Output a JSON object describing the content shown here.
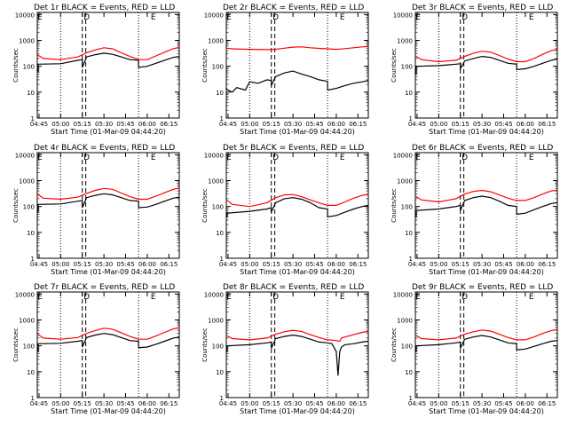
{
  "figure": {
    "xlabel": "Start Time (01-Mar-09 04:44:20)",
    "ylabel": "Counts/sec",
    "x_ticks": [
      "04:45",
      "05:00",
      "05:15",
      "05:30",
      "05:45",
      "06:00",
      "06:15"
    ],
    "y_ticks": [
      "1",
      "10",
      "100",
      "1000",
      "10000"
    ],
    "flag_labels": [
      "E",
      "D",
      "E"
    ],
    "colors": {
      "events": "#000000",
      "lld": "#ff0000",
      "axes": "#000000"
    }
  },
  "chart_data": [
    {
      "type": "line",
      "title": "Det 1r BLACK = Events, RED = LLD",
      "xlim": [
        4.73,
        6.37
      ],
      "ylim": [
        1,
        12000
      ],
      "ylog": true,
      "vlines_dotted": [
        5.0,
        5.9
      ],
      "vlines_dashed": [
        5.25,
        5.29
      ],
      "series": [
        {
          "name": "Events",
          "x": [
            4.73,
            4.74,
            4.74,
            5.0,
            5.2,
            5.25,
            5.25,
            5.3,
            5.4,
            5.5,
            5.6,
            5.7,
            5.8,
            5.9,
            5.9,
            6.0,
            6.1,
            6.2,
            6.3,
            6.37
          ],
          "y": [
            60,
            60,
            120,
            125,
            170,
            180,
            90,
            230,
            280,
            320,
            290,
            230,
            180,
            170,
            90,
            100,
            130,
            170,
            220,
            240
          ]
        },
        {
          "name": "LLD",
          "x": [
            4.73,
            4.8,
            5.0,
            5.2,
            5.3,
            5.4,
            5.5,
            5.6,
            5.7,
            5.8,
            5.9,
            6.0,
            6.1,
            6.2,
            6.3,
            6.37
          ],
          "y": [
            280,
            200,
            180,
            230,
            330,
            430,
            520,
            470,
            330,
            240,
            180,
            180,
            250,
            350,
            480,
            530
          ]
        }
      ]
    },
    {
      "type": "line",
      "title": "Det 2r BLACK = Events, RED = LLD",
      "xlim": [
        4.73,
        6.37
      ],
      "ylim": [
        1,
        12000
      ],
      "ylog": true,
      "vlines_dotted": [
        5.0,
        5.9
      ],
      "vlines_dashed": [
        5.25,
        5.29
      ],
      "series": [
        {
          "name": "Events",
          "x": [
            4.73,
            4.75,
            4.8,
            4.85,
            4.95,
            5.0,
            5.1,
            5.2,
            5.25,
            5.25,
            5.3,
            5.4,
            5.5,
            5.6,
            5.7,
            5.8,
            5.9,
            5.9,
            6.0,
            6.1,
            6.2,
            6.3,
            6.37
          ],
          "y": [
            14,
            12,
            10,
            15,
            12,
            25,
            22,
            30,
            28,
            18,
            40,
            55,
            65,
            50,
            40,
            30,
            26,
            12,
            14,
            18,
            22,
            25,
            28
          ]
        },
        {
          "name": "LLD",
          "x": [
            4.73,
            4.8,
            5.0,
            5.2,
            5.3,
            5.4,
            5.5,
            5.6,
            5.7,
            5.8,
            5.9,
            6.0,
            6.1,
            6.2,
            6.3,
            6.37
          ],
          "y": [
            500,
            470,
            450,
            440,
            450,
            500,
            550,
            560,
            520,
            490,
            470,
            450,
            480,
            520,
            560,
            580
          ]
        }
      ]
    },
    {
      "type": "line",
      "title": "Det 3r BLACK = Events, RED = LLD",
      "xlim": [
        4.73,
        6.37
      ],
      "ylim": [
        1,
        12000
      ],
      "ylog": true,
      "vlines_dotted": [
        5.0,
        5.9
      ],
      "vlines_dashed": [
        5.25,
        5.29
      ],
      "series": [
        {
          "name": "Events",
          "x": [
            4.73,
            4.74,
            4.74,
            5.0,
            5.2,
            5.25,
            5.25,
            5.3,
            5.4,
            5.5,
            5.6,
            5.7,
            5.8,
            5.9,
            5.9,
            6.0,
            6.1,
            6.2,
            6.3,
            6.37
          ],
          "y": [
            50,
            50,
            100,
            105,
            120,
            125,
            80,
            160,
            200,
            240,
            220,
            170,
            130,
            120,
            75,
            80,
            100,
            130,
            170,
            190
          ]
        },
        {
          "name": "LLD",
          "x": [
            4.73,
            4.8,
            5.0,
            5.2,
            5.3,
            5.4,
            5.5,
            5.6,
            5.7,
            5.8,
            5.9,
            6.0,
            6.1,
            6.2,
            6.3,
            6.37
          ],
          "y": [
            250,
            180,
            150,
            170,
            240,
            320,
            380,
            350,
            260,
            190,
            150,
            150,
            200,
            290,
            400,
            450
          ]
        }
      ]
    },
    {
      "type": "line",
      "title": "Det 4r BLACK = Events, RED = LLD",
      "xlim": [
        4.73,
        6.37
      ],
      "ylim": [
        1,
        12000
      ],
      "ylog": true,
      "vlines_dotted": [
        5.0,
        5.9
      ],
      "vlines_dashed": [
        5.25,
        5.29
      ],
      "series": [
        {
          "name": "Events",
          "x": [
            4.73,
            4.74,
            4.74,
            5.0,
            5.2,
            5.25,
            5.25,
            5.3,
            5.4,
            5.5,
            5.6,
            5.7,
            5.8,
            5.9,
            5.9,
            6.0,
            6.1,
            6.2,
            6.3,
            6.37
          ],
          "y": [
            60,
            60,
            120,
            125,
            160,
            170,
            90,
            220,
            270,
            310,
            280,
            220,
            170,
            160,
            90,
            95,
            120,
            160,
            210,
            230
          ]
        },
        {
          "name": "LLD",
          "x": [
            4.73,
            4.8,
            5.0,
            5.2,
            5.3,
            5.4,
            5.5,
            5.6,
            5.7,
            5.8,
            5.9,
            6.0,
            6.1,
            6.2,
            6.3,
            6.37
          ],
          "y": [
            300,
            210,
            190,
            230,
            320,
            420,
            500,
            460,
            330,
            240,
            190,
            190,
            250,
            340,
            460,
            510
          ]
        }
      ]
    },
    {
      "type": "line",
      "title": "Det 5r BLACK = Events, RED = LLD",
      "xlim": [
        4.73,
        6.37
      ],
      "ylim": [
        1,
        12000
      ],
      "ylog": true,
      "vlines_dotted": [
        5.0,
        5.9
      ],
      "vlines_dashed": [
        5.25,
        5.29
      ],
      "series": [
        {
          "name": "Events",
          "x": [
            4.73,
            4.74,
            4.74,
            5.0,
            5.2,
            5.25,
            5.25,
            5.3,
            5.4,
            5.5,
            5.6,
            5.7,
            5.8,
            5.9,
            5.9,
            6.0,
            6.1,
            6.2,
            6.3,
            6.37
          ],
          "y": [
            40,
            40,
            55,
            65,
            80,
            90,
            60,
            140,
            200,
            220,
            190,
            140,
            90,
            80,
            40,
            45,
            60,
            80,
            100,
            110
          ]
        },
        {
          "name": "LLD",
          "x": [
            4.73,
            4.8,
            5.0,
            5.2,
            5.3,
            5.4,
            5.5,
            5.6,
            5.7,
            5.8,
            5.9,
            6.0,
            6.1,
            6.2,
            6.3,
            6.37
          ],
          "y": [
            180,
            120,
            100,
            140,
            220,
            280,
            290,
            240,
            180,
            140,
            110,
            110,
            150,
            210,
            270,
            290
          ]
        }
      ]
    },
    {
      "type": "line",
      "title": "Det 6r BLACK = Events, RED = LLD",
      "xlim": [
        4.73,
        6.37
      ],
      "ylim": [
        1,
        12000
      ],
      "ylog": true,
      "vlines_dotted": [
        5.0,
        5.9
      ],
      "vlines_dashed": [
        5.25,
        5.29
      ],
      "series": [
        {
          "name": "Events",
          "x": [
            4.73,
            4.74,
            4.74,
            5.0,
            5.2,
            5.25,
            5.25,
            5.3,
            5.4,
            5.5,
            5.6,
            5.7,
            5.8,
            5.9,
            5.9,
            6.0,
            6.1,
            6.2,
            6.3,
            6.37
          ],
          "y": [
            40,
            40,
            70,
            80,
            100,
            110,
            70,
            170,
            220,
            250,
            220,
            160,
            110,
            100,
            50,
            55,
            75,
            100,
            130,
            140
          ]
        },
        {
          "name": "LLD",
          "x": [
            4.73,
            4.8,
            5.0,
            5.2,
            5.3,
            5.4,
            5.5,
            5.6,
            5.7,
            5.8,
            5.9,
            6.0,
            6.1,
            6.2,
            6.3,
            6.37
          ],
          "y": [
            250,
            180,
            150,
            200,
            300,
            380,
            420,
            370,
            280,
            210,
            170,
            170,
            220,
            300,
            400,
            430
          ]
        }
      ]
    },
    {
      "type": "line",
      "title": "Det 7r BLACK = Events, RED = LLD",
      "xlim": [
        4.73,
        6.37
      ],
      "ylim": [
        1,
        12000
      ],
      "ylog": true,
      "vlines_dotted": [
        5.0,
        5.9
      ],
      "vlines_dashed": [
        5.25,
        5.29
      ],
      "series": [
        {
          "name": "Events",
          "x": [
            4.73,
            4.74,
            4.74,
            5.0,
            5.2,
            5.25,
            5.25,
            5.3,
            5.4,
            5.5,
            5.6,
            5.7,
            5.8,
            5.9,
            5.9,
            6.0,
            6.1,
            6.2,
            6.3,
            6.37
          ],
          "y": [
            60,
            60,
            120,
            125,
            150,
            160,
            90,
            210,
            260,
            300,
            270,
            210,
            160,
            150,
            85,
            90,
            115,
            150,
            200,
            220
          ]
        },
        {
          "name": "LLD",
          "x": [
            4.73,
            4.8,
            5.0,
            5.2,
            5.3,
            5.4,
            5.5,
            5.6,
            5.7,
            5.8,
            5.9,
            6.0,
            6.1,
            6.2,
            6.3,
            6.37
          ],
          "y": [
            290,
            200,
            180,
            210,
            300,
            390,
            480,
            440,
            320,
            230,
            180,
            180,
            240,
            330,
            450,
            500
          ]
        }
      ]
    },
    {
      "type": "line",
      "title": "Det 8r BLACK = Events, RED = LLD",
      "xlim": [
        4.73,
        6.37
      ],
      "ylim": [
        1,
        12000
      ],
      "ylog": true,
      "vlines_dotted": [
        5.0,
        5.9
      ],
      "vlines_dashed": [
        5.25,
        5.29
      ],
      "series": [
        {
          "name": "Events",
          "x": [
            4.73,
            4.74,
            4.74,
            5.0,
            5.2,
            5.25,
            5.25,
            5.3,
            5.4,
            5.5,
            5.6,
            5.7,
            5.8,
            5.9,
            5.95,
            6.0,
            6.02,
            6.04,
            6.06,
            6.1,
            6.2,
            6.3,
            6.37
          ],
          "y": [
            60,
            60,
            100,
            110,
            130,
            140,
            80,
            190,
            230,
            260,
            230,
            180,
            140,
            130,
            120,
            60,
            7,
            60,
            90,
            110,
            120,
            140,
            150
          ]
        },
        {
          "name": "LLD",
          "x": [
            4.73,
            4.8,
            5.0,
            5.2,
            5.3,
            5.4,
            5.5,
            5.6,
            5.7,
            5.8,
            5.9,
            6.0,
            6.04,
            6.06,
            6.1,
            6.2,
            6.3,
            6.37
          ],
          "y": [
            250,
            190,
            170,
            200,
            280,
            350,
            400,
            360,
            270,
            210,
            170,
            160,
            150,
            200,
            220,
            270,
            330,
            360
          ]
        }
      ]
    },
    {
      "type": "line",
      "title": "Det 9r BLACK = Events, RED = LLD",
      "xlim": [
        4.73,
        6.37
      ],
      "ylim": [
        1,
        12000
      ],
      "ylog": true,
      "vlines_dotted": [
        5.0,
        5.9
      ],
      "vlines_dashed": [
        5.25,
        5.29
      ],
      "series": [
        {
          "name": "Events",
          "x": [
            4.73,
            4.74,
            4.74,
            5.0,
            5.2,
            5.25,
            5.25,
            5.3,
            5.4,
            5.5,
            5.6,
            5.7,
            5.8,
            5.9,
            5.9,
            6.0,
            6.1,
            6.2,
            6.3,
            6.37
          ],
          "y": [
            60,
            60,
            100,
            110,
            130,
            140,
            80,
            180,
            220,
            250,
            220,
            170,
            130,
            120,
            70,
            75,
            95,
            120,
            150,
            160
          ]
        },
        {
          "name": "LLD",
          "x": [
            4.73,
            4.8,
            5.0,
            5.2,
            5.3,
            5.4,
            5.5,
            5.6,
            5.7,
            5.8,
            5.9,
            6.0,
            6.1,
            6.2,
            6.3,
            6.37
          ],
          "y": [
            260,
            190,
            170,
            200,
            280,
            350,
            410,
            370,
            280,
            210,
            170,
            170,
            220,
            300,
            390,
            420
          ]
        }
      ]
    }
  ]
}
